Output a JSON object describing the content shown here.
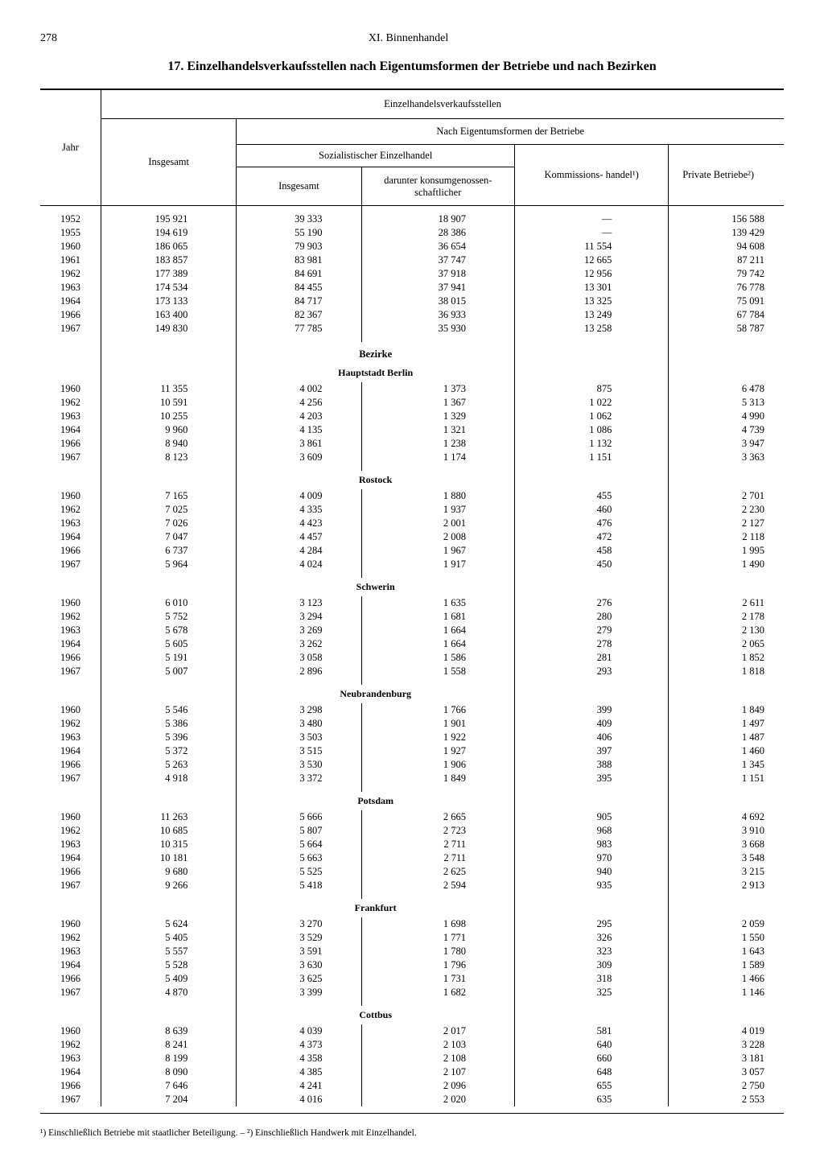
{
  "page_number": "278",
  "chapter": "XI. Binnenhandel",
  "title": "17. Einzelhandelsverkaufsstellen nach Eigentumsformen der Betriebe und nach Bezirken",
  "headers": {
    "jahr": "Jahr",
    "super": "Einzelhandelsverkaufsstellen",
    "insgesamt": "Insgesamt",
    "nach": "Nach Eigentumsformen der Betriebe",
    "soz": "Sozialistischer Einzelhandel",
    "soz_insg": "Insgesamt",
    "darunter": "darunter konsumgenossen- schaftlicher",
    "komm": "Kommissions- handel¹)",
    "priv": "Private Betriebe²)"
  },
  "sections": [
    {
      "title": null,
      "rows": [
        [
          "1952",
          "195 921",
          "39 333",
          "18 907",
          "—",
          "156 588"
        ],
        [
          "1955",
          "194 619",
          "55 190",
          "28 386",
          "—",
          "139 429"
        ],
        [
          "1960",
          "186 065",
          "79 903",
          "36 654",
          "11 554",
          "94 608"
        ],
        [
          "1961",
          "183 857",
          "83 981",
          "37 747",
          "12 665",
          "87 211"
        ],
        [
          "1962",
          "177 389",
          "84 691",
          "37 918",
          "12 956",
          "79 742"
        ],
        [
          "1963",
          "174 534",
          "84 455",
          "37 941",
          "13 301",
          "76 778"
        ],
        [
          "1964",
          "173 133",
          "84 717",
          "38 015",
          "13 325",
          "75 091"
        ],
        [
          "1966",
          "163 400",
          "82 367",
          "36 933",
          "13 249",
          "67 784"
        ],
        [
          "1967",
          "149 830",
          "77 785",
          "35 930",
          "13 258",
          "58 787"
        ]
      ]
    },
    {
      "super": "Bezirke",
      "title": "Hauptstadt Berlin",
      "rows": [
        [
          "1960",
          "11 355",
          "4 002",
          "1 373",
          "875",
          "6 478"
        ],
        [
          "1962",
          "10 591",
          "4 256",
          "1 367",
          "1 022",
          "5 313"
        ],
        [
          "1963",
          "10 255",
          "4 203",
          "1 329",
          "1 062",
          "4 990"
        ],
        [
          "1964",
          "9 960",
          "4 135",
          "1 321",
          "1 086",
          "4 739"
        ],
        [
          "1966",
          "8 940",
          "3 861",
          "1 238",
          "1 132",
          "3 947"
        ],
        [
          "1967",
          "8 123",
          "3 609",
          "1 174",
          "1 151",
          "3 363"
        ]
      ]
    },
    {
      "title": "Rostock",
      "rows": [
        [
          "1960",
          "7 165",
          "4 009",
          "1 880",
          "455",
          "2 701"
        ],
        [
          "1962",
          "7 025",
          "4 335",
          "1 937",
          "460",
          "2 230"
        ],
        [
          "1963",
          "7 026",
          "4 423",
          "2 001",
          "476",
          "2 127"
        ],
        [
          "1964",
          "7 047",
          "4 457",
          "2 008",
          "472",
          "2 118"
        ],
        [
          "1966",
          "6 737",
          "4 284",
          "1 967",
          "458",
          "1 995"
        ],
        [
          "1967",
          "5 964",
          "4 024",
          "1 917",
          "450",
          "1 490"
        ]
      ]
    },
    {
      "title": "Schwerin",
      "rows": [
        [
          "1960",
          "6 010",
          "3 123",
          "1 635",
          "276",
          "2 611"
        ],
        [
          "1962",
          "5 752",
          "3 294",
          "1 681",
          "280",
          "2 178"
        ],
        [
          "1963",
          "5 678",
          "3 269",
          "1 664",
          "279",
          "2 130"
        ],
        [
          "1964",
          "5 605",
          "3 262",
          "1 664",
          "278",
          "2 065"
        ],
        [
          "1966",
          "5 191",
          "3 058",
          "1 586",
          "281",
          "1 852"
        ],
        [
          "1967",
          "5 007",
          "2 896",
          "1 558",
          "293",
          "1 818"
        ]
      ]
    },
    {
      "title": "Neubrandenburg",
      "rows": [
        [
          "1960",
          "5 546",
          "3 298",
          "1 766",
          "399",
          "1 849"
        ],
        [
          "1962",
          "5 386",
          "3 480",
          "1 901",
          "409",
          "1 497"
        ],
        [
          "1963",
          "5 396",
          "3 503",
          "1 922",
          "406",
          "1 487"
        ],
        [
          "1964",
          "5 372",
          "3 515",
          "1 927",
          "397",
          "1 460"
        ],
        [
          "1966",
          "5 263",
          "3 530",
          "1 906",
          "388",
          "1 345"
        ],
        [
          "1967",
          "4 918",
          "3 372",
          "1 849",
          "395",
          "1 151"
        ]
      ]
    },
    {
      "title": "Potsdam",
      "rows": [
        [
          "1960",
          "11 263",
          "5 666",
          "2 665",
          "905",
          "4 692"
        ],
        [
          "1962",
          "10 685",
          "5 807",
          "2 723",
          "968",
          "3 910"
        ],
        [
          "1963",
          "10 315",
          "5 664",
          "2 711",
          "983",
          "3 668"
        ],
        [
          "1964",
          "10 181",
          "5 663",
          "2 711",
          "970",
          "3 548"
        ],
        [
          "1966",
          "9 680",
          "5 525",
          "2 625",
          "940",
          "3 215"
        ],
        [
          "1967",
          "9 266",
          "5 418",
          "2 594",
          "935",
          "2 913"
        ]
      ]
    },
    {
      "title": "Frankfurt",
      "rows": [
        [
          "1960",
          "5 624",
          "3 270",
          "1 698",
          "295",
          "2 059"
        ],
        [
          "1962",
          "5 405",
          "3 529",
          "1 771",
          "326",
          "1 550"
        ],
        [
          "1963",
          "5 557",
          "3 591",
          "1 780",
          "323",
          "1 643"
        ],
        [
          "1964",
          "5 528",
          "3 630",
          "1 796",
          "309",
          "1 589"
        ],
        [
          "1966",
          "5 409",
          "3 625",
          "1 731",
          "318",
          "1 466"
        ],
        [
          "1967",
          "4 870",
          "3 399",
          "1 682",
          "325",
          "1 146"
        ]
      ]
    },
    {
      "title": "Cottbus",
      "rows": [
        [
          "1960",
          "8 639",
          "4 039",
          "2 017",
          "581",
          "4 019"
        ],
        [
          "1962",
          "8 241",
          "4 373",
          "2 103",
          "640",
          "3 228"
        ],
        [
          "1963",
          "8 199",
          "4 358",
          "2 108",
          "660",
          "3 181"
        ],
        [
          "1964",
          "8 090",
          "4 385",
          "2 107",
          "648",
          "3 057"
        ],
        [
          "1966",
          "7 646",
          "4 241",
          "2 096",
          "655",
          "2 750"
        ],
        [
          "1967",
          "7 204",
          "4 016",
          "2 020",
          "635",
          "2 553"
        ]
      ]
    }
  ],
  "footnote": "¹) Einschließlich Betriebe mit staatlicher Beteiligung. – ²) Einschließlich Handwerk mit Einzelhandel."
}
